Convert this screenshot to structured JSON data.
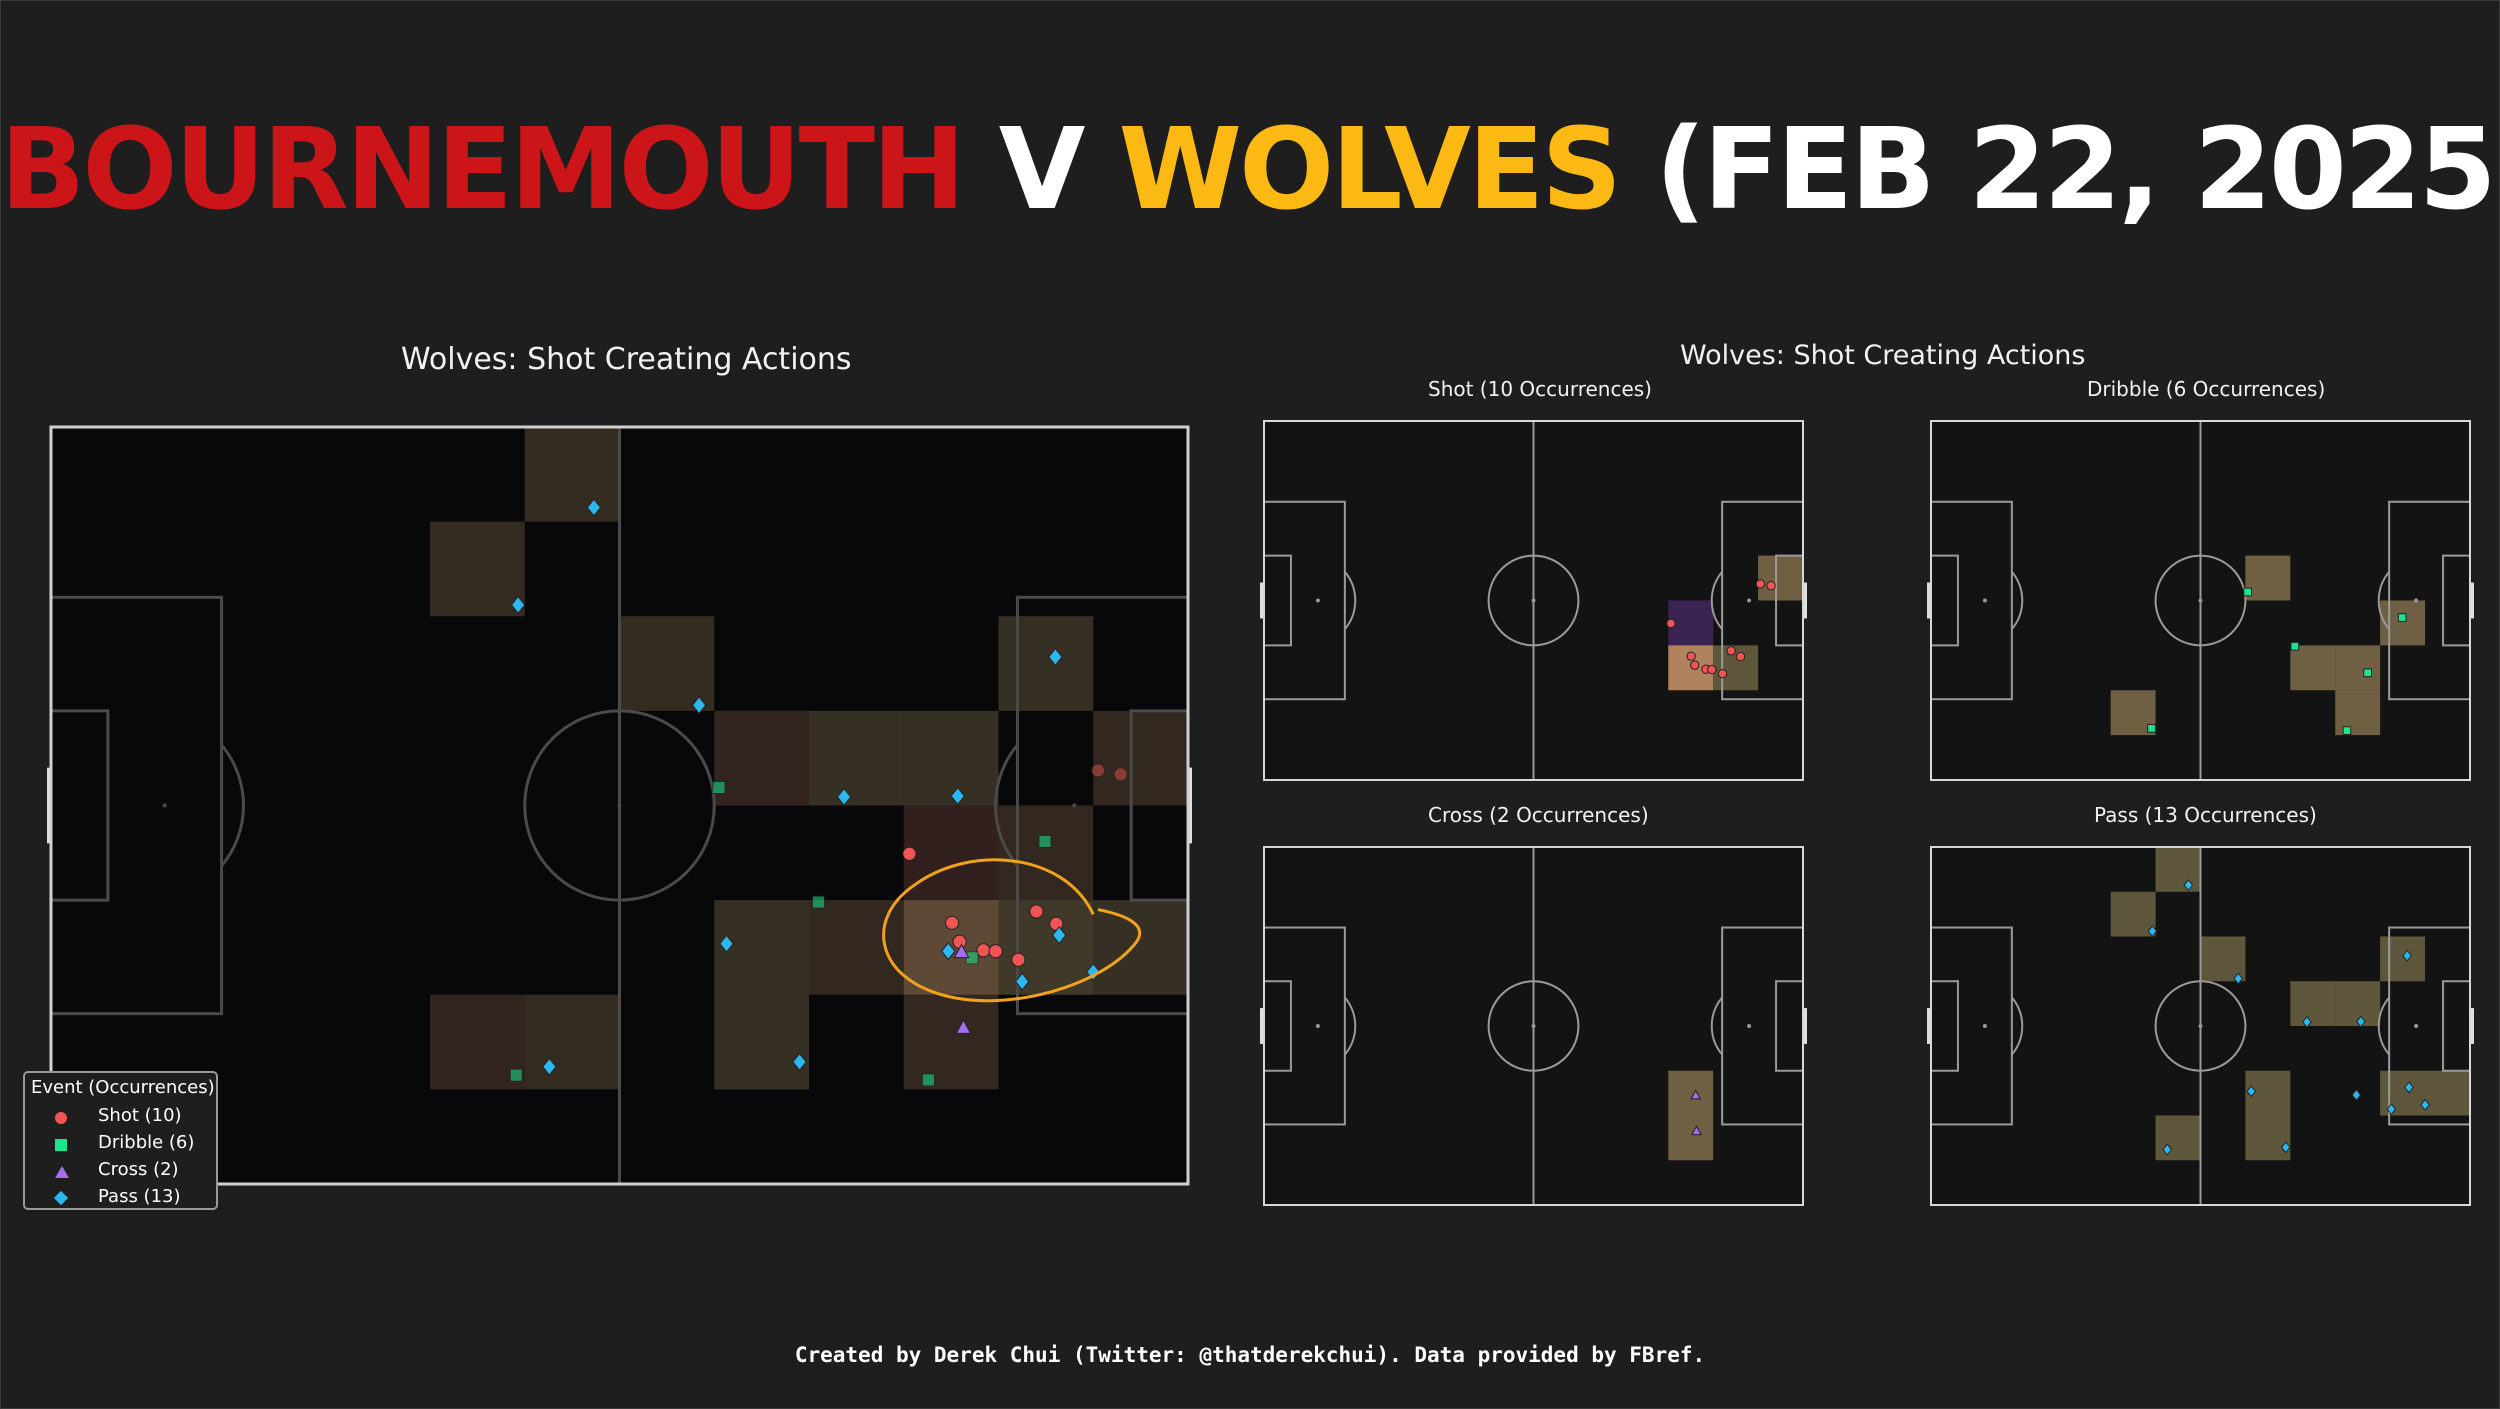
{
  "title": {
    "home": "BOURNEMOUTH",
    "v": "V",
    "away": "WOLVES",
    "date": "(FEB 22, 2025)",
    "home_color": "#cc1518",
    "away_color": "#fdb913",
    "text_color": "#ffffff"
  },
  "main_panel": {
    "title": "Wolves: Shot Creating Actions"
  },
  "small_panels": {
    "title": "Wolves: Shot Creating Actions"
  },
  "legend": {
    "title": "Event (Occurrences)",
    "entries": [
      {
        "label": "Shot (10)",
        "marker": "circle",
        "color": "#f05454"
      },
      {
        "label": "Dribble (6)",
        "marker": "square",
        "color": "#18e58c"
      },
      {
        "label": "Cross (2)",
        "marker": "triangle",
        "color": "#a66df0"
      },
      {
        "label": "Pass (13)",
        "marker": "diamond",
        "color": "#2bb8ef"
      }
    ]
  },
  "footer": "Created by Derek Chui (Twitter: @thatderekchui). Data provided by FBref.",
  "chart_data": [
    {
      "type": "scatter",
      "title": "Wolves: Shot Creating Actions",
      "pitch": {
        "length": 120,
        "width": 80,
        "direction": "attacking-right"
      },
      "legend_placement": "bottom-left",
      "grid": false,
      "heatmap_bins": {
        "x_bins": 12,
        "y_bins": 8
      },
      "series": [
        {
          "name": "Shot (10)",
          "marker": "circle",
          "color": "#f05454",
          "x": [
            110.5,
            112.9,
            90.6,
            95.1,
            98.4,
            99.7,
            104.0,
            106.1,
            102.1,
            95.9
          ],
          "y": [
            36.3,
            36.7,
            45.1,
            52.4,
            55.3,
            55.4,
            51.2,
            52.5,
            56.3,
            54.4
          ]
        },
        {
          "name": "Dribble (6)",
          "marker": "square",
          "color": "#18e58c",
          "x": [
            70.5,
            81.0,
            97.2,
            104.9,
            49.1,
            92.6
          ],
          "y": [
            38.1,
            50.2,
            56.1,
            43.8,
            68.5,
            69.0
          ]
        },
        {
          "name": "Cross (2)",
          "marker": "triangle",
          "color": "#a66df0",
          "x": [
            96.1,
            96.3
          ],
          "y": [
            55.5,
            63.5
          ]
        },
        {
          "name": "Pass (13)",
          "marker": "diamond",
          "color": "#2bb8ef",
          "x": [
            57.3,
            49.3,
            68.4,
            106.0,
            83.7,
            95.7,
            71.3,
            79.0,
            94.7,
            102.5,
            106.4,
            110.0,
            52.6
          ],
          "y": [
            8.5,
            18.8,
            29.4,
            24.3,
            39.1,
            39.0,
            54.6,
            67.1,
            55.4,
            58.6,
            53.7,
            57.6,
            67.6
          ]
        }
      ],
      "heatmap_cells": [
        {
          "col": 5,
          "row": 0,
          "v": 0.35
        },
        {
          "col": 4,
          "row": 1,
          "v": 0.35
        },
        {
          "col": 6,
          "row": 2,
          "v": 0.35
        },
        {
          "col": 10,
          "row": 2,
          "v": 0.4
        },
        {
          "col": 7,
          "row": 3,
          "v": 0.25
        },
        {
          "col": 8,
          "row": 3,
          "v": 0.4
        },
        {
          "col": 9,
          "row": 3,
          "v": 0.4
        },
        {
          "col": 11,
          "row": 3,
          "v": 0.3
        },
        {
          "col": 9,
          "row": 4,
          "v": 0.2
        },
        {
          "col": 10,
          "row": 4,
          "v": 0.3
        },
        {
          "col": 7,
          "row": 5,
          "v": 0.4
        },
        {
          "col": 8,
          "row": 5,
          "v": 0.3
        },
        {
          "col": 9,
          "row": 5,
          "v": 0.85
        },
        {
          "col": 10,
          "row": 5,
          "v": 0.55
        },
        {
          "col": 11,
          "row": 5,
          "v": 0.4
        },
        {
          "col": 4,
          "row": 6,
          "v": 0.25
        },
        {
          "col": 5,
          "row": 6,
          "v": 0.35
        },
        {
          "col": 7,
          "row": 6,
          "v": 0.4
        },
        {
          "col": 9,
          "row": 6,
          "v": 0.3
        }
      ],
      "annotation": "hand-drawn orange ellipse around cluster near right penalty area"
    },
    {
      "type": "scatter",
      "title": "Shot  (10 Occurrences)",
      "series": [
        {
          "name": "Shot",
          "marker": "circle",
          "color": "#f05454",
          "x": [
            110.5,
            112.9,
            90.6,
            95.1,
            98.4,
            99.7,
            104.0,
            106.1,
            102.1,
            95.9
          ],
          "y": [
            36.3,
            36.7,
            45.1,
            52.4,
            55.3,
            55.4,
            51.2,
            52.5,
            56.3,
            54.4
          ]
        }
      ],
      "heatmap_cells": [
        {
          "col": 11,
          "row": 3,
          "v": 0.6
        },
        {
          "col": 9,
          "row": 4,
          "v": 0.3
        },
        {
          "col": 9,
          "row": 5,
          "v": 1.0
        },
        {
          "col": 10,
          "row": 5,
          "v": 0.5
        }
      ]
    },
    {
      "type": "scatter",
      "title": "Dribble  (6 Occurrences)",
      "series": [
        {
          "name": "Dribble",
          "marker": "square",
          "color": "#18e58c",
          "x": [
            70.5,
            81.0,
            97.2,
            104.9,
            49.1,
            92.6
          ],
          "y": [
            38.1,
            50.2,
            56.1,
            43.8,
            68.5,
            69.0
          ]
        }
      ],
      "heatmap_cells": [
        {
          "col": 7,
          "row": 3,
          "v": 0.6
        },
        {
          "col": 10,
          "row": 4,
          "v": 0.6
        },
        {
          "col": 8,
          "row": 5,
          "v": 0.6
        },
        {
          "col": 9,
          "row": 5,
          "v": 0.6
        },
        {
          "col": 4,
          "row": 6,
          "v": 0.6
        },
        {
          "col": 9,
          "row": 6,
          "v": 0.6
        }
      ]
    },
    {
      "type": "scatter",
      "title": "Cross  (2 Occurrences)",
      "series": [
        {
          "name": "Cross",
          "marker": "triangle",
          "color": "#a66df0",
          "x": [
            96.1,
            96.3
          ],
          "y": [
            55.5,
            63.5
          ]
        }
      ],
      "heatmap_cells": [
        {
          "col": 9,
          "row": 5,
          "v": 0.6
        },
        {
          "col": 9,
          "row": 6,
          "v": 0.6
        }
      ]
    },
    {
      "type": "scatter",
      "title": "Pass  (13 Occurrences)",
      "series": [
        {
          "name": "Pass",
          "marker": "diamond",
          "color": "#2bb8ef",
          "x": [
            57.3,
            49.3,
            68.4,
            106.0,
            83.7,
            95.7,
            71.3,
            79.0,
            94.7,
            102.5,
            106.4,
            110.0,
            52.6
          ],
          "y": [
            8.5,
            18.8,
            29.4,
            24.3,
            39.1,
            39.0,
            54.6,
            67.1,
            55.4,
            58.6,
            53.7,
            57.6,
            67.6
          ]
        }
      ],
      "heatmap_cells": [
        {
          "col": 5,
          "row": 0,
          "v": 0.5
        },
        {
          "col": 4,
          "row": 1,
          "v": 0.5
        },
        {
          "col": 6,
          "row": 2,
          "v": 0.5
        },
        {
          "col": 10,
          "row": 2,
          "v": 0.5
        },
        {
          "col": 8,
          "row": 3,
          "v": 0.5
        },
        {
          "col": 9,
          "row": 3,
          "v": 0.5
        },
        {
          "col": 11,
          "row": 5,
          "v": 0.5
        },
        {
          "col": 7,
          "row": 5,
          "v": 0.5
        },
        {
          "col": 10,
          "row": 5,
          "v": 0.5
        },
        {
          "col": 7,
          "row": 6,
          "v": 0.5
        },
        {
          "col": 5,
          "row": 6,
          "v": 0.5
        }
      ]
    }
  ]
}
